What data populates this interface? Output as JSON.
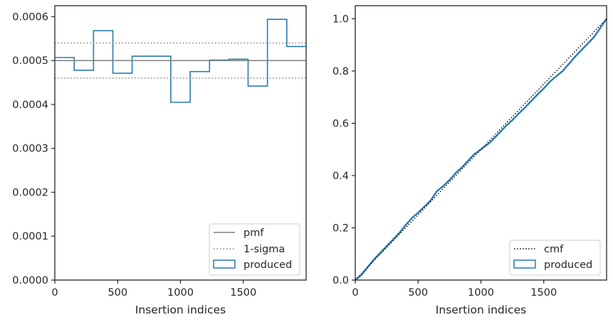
{
  "chart_data": [
    {
      "type": "histogram",
      "xlabel": "Insertion indices",
      "ylabel": "",
      "xlim": [
        0,
        2000
      ],
      "ylim": [
        0,
        0.000625
      ],
      "xticks": [
        0,
        500,
        1000,
        1500
      ],
      "xtick_labels": [
        "0",
        "500",
        "1000",
        "1500"
      ],
      "yticks": [
        0,
        0.0001,
        0.0002,
        0.0003,
        0.0004,
        0.0005,
        0.0006
      ],
      "ytick_labels": [
        "0.0000",
        "0.0001",
        "0.0002",
        "0.0003",
        "0.0004",
        "0.0005",
        "0.0006"
      ],
      "pmf": 0.0005,
      "sigma_band": [
        0.00046,
        0.00054
      ],
      "bin_edges": [
        0,
        154,
        308,
        462,
        615,
        769,
        923,
        1077,
        1231,
        1385,
        1538,
        1692,
        1846,
        2000
      ],
      "values": [
        0.000507,
        0.000478,
        0.000568,
        0.000471,
        0.00051,
        0.00051,
        0.000405,
        0.000475,
        0.000501,
        0.000503,
        0.000442,
        0.000594,
        0.000532
      ],
      "legend": [
        "pmf",
        "1-sigma",
        "produced"
      ],
      "legend_position": "lower-right",
      "colors": {
        "pmf": "#808080",
        "sigma": "#808080",
        "produced": "#2a7bb0"
      }
    },
    {
      "type": "line",
      "xlabel": "Insertion indices",
      "ylabel": "",
      "xlim": [
        0,
        2000
      ],
      "ylim": [
        0,
        1.05
      ],
      "xticks": [
        0,
        500,
        1000,
        1500
      ],
      "xtick_labels": [
        "0",
        "500",
        "1000",
        "1500"
      ],
      "yticks": [
        0,
        0.2,
        0.4,
        0.6,
        0.8,
        1.0
      ],
      "ytick_labels": [
        "0.0",
        "0.2",
        "0.4",
        "0.6",
        "0.8",
        "1.0"
      ],
      "cmf": {
        "x": [
          0,
          2000
        ],
        "y": [
          0,
          1.0
        ]
      },
      "produced": {
        "x": [
          0,
          50,
          100,
          150,
          200,
          250,
          300,
          350,
          400,
          450,
          500,
          550,
          600,
          650,
          700,
          750,
          800,
          850,
          900,
          950,
          1000,
          1050,
          1100,
          1150,
          1200,
          1250,
          1300,
          1350,
          1400,
          1450,
          1500,
          1550,
          1600,
          1650,
          1700,
          1750,
          1800,
          1850,
          1900,
          1950,
          2000
        ],
        "y": [
          0,
          0.02,
          0.05,
          0.08,
          0.105,
          0.13,
          0.155,
          0.18,
          0.21,
          0.237,
          0.258,
          0.281,
          0.305,
          0.34,
          0.36,
          0.383,
          0.41,
          0.432,
          0.458,
          0.483,
          0.5,
          0.518,
          0.54,
          0.565,
          0.59,
          0.612,
          0.637,
          0.66,
          0.685,
          0.71,
          0.733,
          0.76,
          0.78,
          0.8,
          0.827,
          0.855,
          0.88,
          0.905,
          0.93,
          0.965,
          1.0
        ]
      },
      "legend": [
        "cmf",
        "produced"
      ],
      "legend_position": "lower-right",
      "colors": {
        "cmf": "#000000",
        "produced": "#2a7bb0"
      }
    }
  ]
}
